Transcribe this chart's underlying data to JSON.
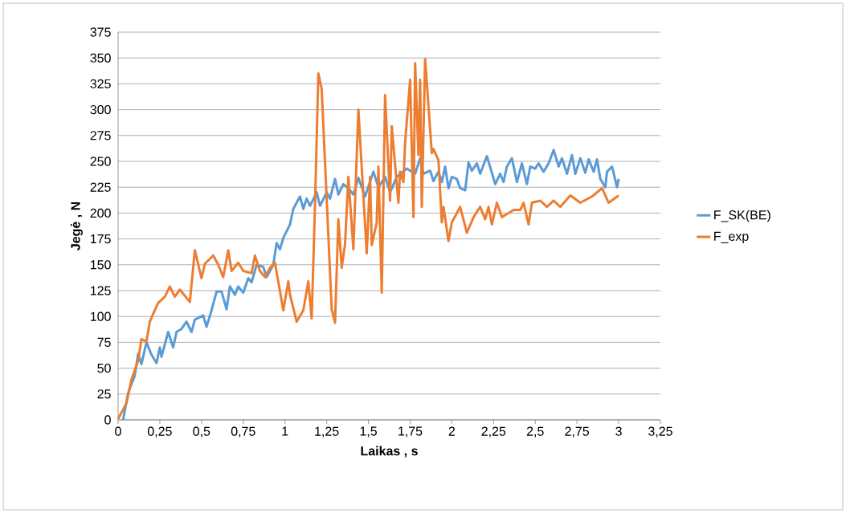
{
  "chart_data": {
    "type": "line",
    "xlabel": "Laikas , s",
    "ylabel": "Jegė , N",
    "xlim": [
      0,
      3.25
    ],
    "ylim": [
      0,
      375
    ],
    "xticks": [
      0,
      {
        "value": 0.25,
        "label": "0,25"
      },
      {
        "value": 0.5,
        "label": "0,5"
      },
      {
        "value": 0.75,
        "label": "0,75"
      },
      1,
      {
        "value": 1.25,
        "label": "1,25"
      },
      {
        "value": 1.5,
        "label": "1,5"
      },
      {
        "value": 1.75,
        "label": "1,75"
      },
      2,
      {
        "value": 2.25,
        "label": "2,25"
      },
      {
        "value": 2.5,
        "label": "2,5"
      },
      {
        "value": 2.75,
        "label": "2,75"
      },
      3,
      {
        "value": 3.25,
        "label": "3,25"
      }
    ],
    "yticks": [
      0,
      25,
      50,
      75,
      100,
      125,
      150,
      175,
      200,
      225,
      250,
      275,
      300,
      325,
      350,
      375
    ],
    "grid": "y",
    "legend": "right",
    "marker": "none",
    "line_style": "solid",
    "series": [
      {
        "name": "F_SK(BE)",
        "color": "#5b9bd5",
        "x": [
          0.03,
          0.06,
          0.1,
          0.12,
          0.14,
          0.17,
          0.2,
          0.23,
          0.25,
          0.26,
          0.3,
          0.33,
          0.35,
          0.38,
          0.41,
          0.44,
          0.46,
          0.51,
          0.53,
          0.56,
          0.59,
          0.62,
          0.65,
          0.67,
          0.7,
          0.72,
          0.75,
          0.78,
          0.8,
          0.83,
          0.87,
          0.89,
          0.93,
          0.95,
          0.97,
          0.99,
          1.03,
          1.05,
          1.09,
          1.11,
          1.13,
          1.15,
          1.19,
          1.21,
          1.25,
          1.27,
          1.3,
          1.32,
          1.35,
          1.38,
          1.41,
          1.44,
          1.48,
          1.53,
          1.56,
          1.6,
          1.63,
          1.67,
          1.73,
          1.78,
          1.81,
          1.83,
          1.87,
          1.89,
          1.92,
          1.94,
          1.96,
          1.98,
          2.0,
          2.03,
          2.05,
          2.08,
          2.1,
          2.12,
          2.15,
          2.17,
          2.21,
          2.24,
          2.26,
          2.29,
          2.31,
          2.33,
          2.36,
          2.39,
          2.42,
          2.45,
          2.47,
          2.5,
          2.52,
          2.55,
          2.58,
          2.61,
          2.64,
          2.66,
          2.69,
          2.72,
          2.74,
          2.77,
          2.8,
          2.82,
          2.85,
          2.87,
          2.89,
          2.92,
          2.93,
          2.96,
          2.99,
          3.0
        ],
        "values": [
          0,
          26,
          43,
          64,
          54,
          75,
          63,
          55,
          70,
          61,
          85,
          70,
          85,
          88,
          95,
          85,
          97,
          101,
          90,
          106,
          124,
          124,
          107,
          129,
          121,
          129,
          123,
          137,
          133,
          150,
          148,
          138,
          150,
          171,
          165,
          176,
          189,
          204,
          216,
          204,
          214,
          207,
          220,
          207,
          220,
          214,
          233,
          218,
          228,
          224,
          218,
          234,
          216,
          240,
          225,
          235,
          220,
          235,
          243,
          238,
          253,
          238,
          241,
          231,
          240,
          230,
          245,
          224,
          235,
          233,
          224,
          222,
          249,
          241,
          248,
          238,
          255,
          239,
          228,
          238,
          230,
          245,
          253,
          230,
          248,
          228,
          245,
          243,
          248,
          240,
          248,
          261,
          245,
          253,
          238,
          256,
          238,
          253,
          239,
          252,
          240,
          252,
          233,
          225,
          240,
          245,
          225,
          233
        ]
      },
      {
        "name": "F_exp",
        "color": "#ed7d31",
        "x": [
          0.0,
          0.05,
          0.08,
          0.12,
          0.14,
          0.17,
          0.19,
          0.22,
          0.24,
          0.28,
          0.31,
          0.34,
          0.37,
          0.4,
          0.43,
          0.46,
          0.5,
          0.52,
          0.57,
          0.6,
          0.63,
          0.66,
          0.68,
          0.72,
          0.75,
          0.8,
          0.82,
          0.85,
          0.88,
          0.91,
          0.94,
          0.99,
          1.02,
          1.03,
          1.07,
          1.11,
          1.14,
          1.16,
          1.18,
          1.2,
          1.22,
          1.28,
          1.3,
          1.32,
          1.34,
          1.36,
          1.38,
          1.41,
          1.44,
          1.49,
          1.51,
          1.52,
          1.55,
          1.56,
          1.58,
          1.6,
          1.63,
          1.64,
          1.68,
          1.69,
          1.71,
          1.72,
          1.75,
          1.77,
          1.78,
          1.8,
          1.81,
          1.82,
          1.84,
          1.88,
          1.89,
          1.92,
          1.94,
          1.95,
          1.98,
          2.0,
          2.05,
          2.09,
          2.13,
          2.17,
          2.2,
          2.22,
          2.24,
          2.27,
          2.3,
          2.37,
          2.41,
          2.43,
          2.46,
          2.48,
          2.53,
          2.57,
          2.61,
          2.65,
          2.71,
          2.77,
          2.84,
          2.87,
          2.9,
          2.94,
          3.0
        ],
        "values": [
          1,
          16,
          39,
          57,
          78,
          76,
          95,
          106,
          113,
          119,
          129,
          119,
          126,
          120,
          114,
          164,
          137,
          151,
          159,
          150,
          138,
          164,
          144,
          152,
          144,
          142,
          159,
          144,
          138,
          147,
          152,
          106,
          134,
          121,
          95,
          106,
          134,
          98,
          207,
          335,
          320,
          107,
          94,
          194,
          147,
          170,
          235,
          165,
          300,
          161,
          235,
          169,
          191,
          245,
          123,
          314,
          212,
          284,
          210,
          240,
          230,
          268,
          329,
          196,
          345,
          256,
          329,
          206,
          349,
          258,
          262,
          251,
          191,
          206,
          173,
          191,
          206,
          181,
          196,
          206,
          194,
          206,
          189,
          210,
          196,
          203,
          203,
          210,
          189,
          210,
          212,
          206,
          212,
          206,
          217,
          210,
          216,
          220,
          224,
          210,
          217
        ]
      }
    ]
  }
}
